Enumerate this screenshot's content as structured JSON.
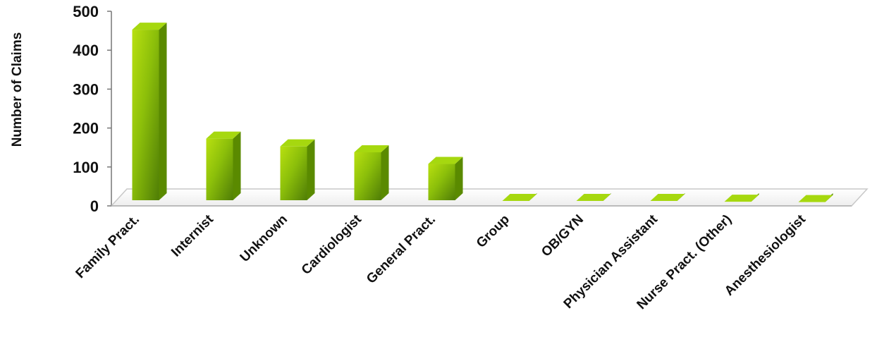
{
  "chart_data": {
    "type": "bar",
    "title": "",
    "xlabel": "",
    "ylabel": "Number of Claims",
    "categories": [
      "Family Pract.",
      "Internist",
      "Unknown",
      "Cardiologist",
      "General Pract.",
      "Group",
      "OB/GYN",
      "Physician Assistant",
      "Nurse Pract. (Other)",
      "Anesthesiologist"
    ],
    "values": [
      460,
      180,
      160,
      145,
      115,
      20,
      20,
      20,
      18,
      17
    ],
    "ylim": [
      0,
      500
    ],
    "yticks": [
      "0",
      "100",
      "200",
      "300",
      "400",
      "500"
    ],
    "grid": false,
    "legend": "none",
    "colors": {
      "bar_light": "#b8e010",
      "bar_mid": "#8cbf0a",
      "bar_dark": "#4f7d06",
      "bar_side": "#5a8a00",
      "bar_top": "#a6d80f",
      "floor": "#f7f7f7",
      "floor_edge": "#c8c8c8"
    }
  }
}
